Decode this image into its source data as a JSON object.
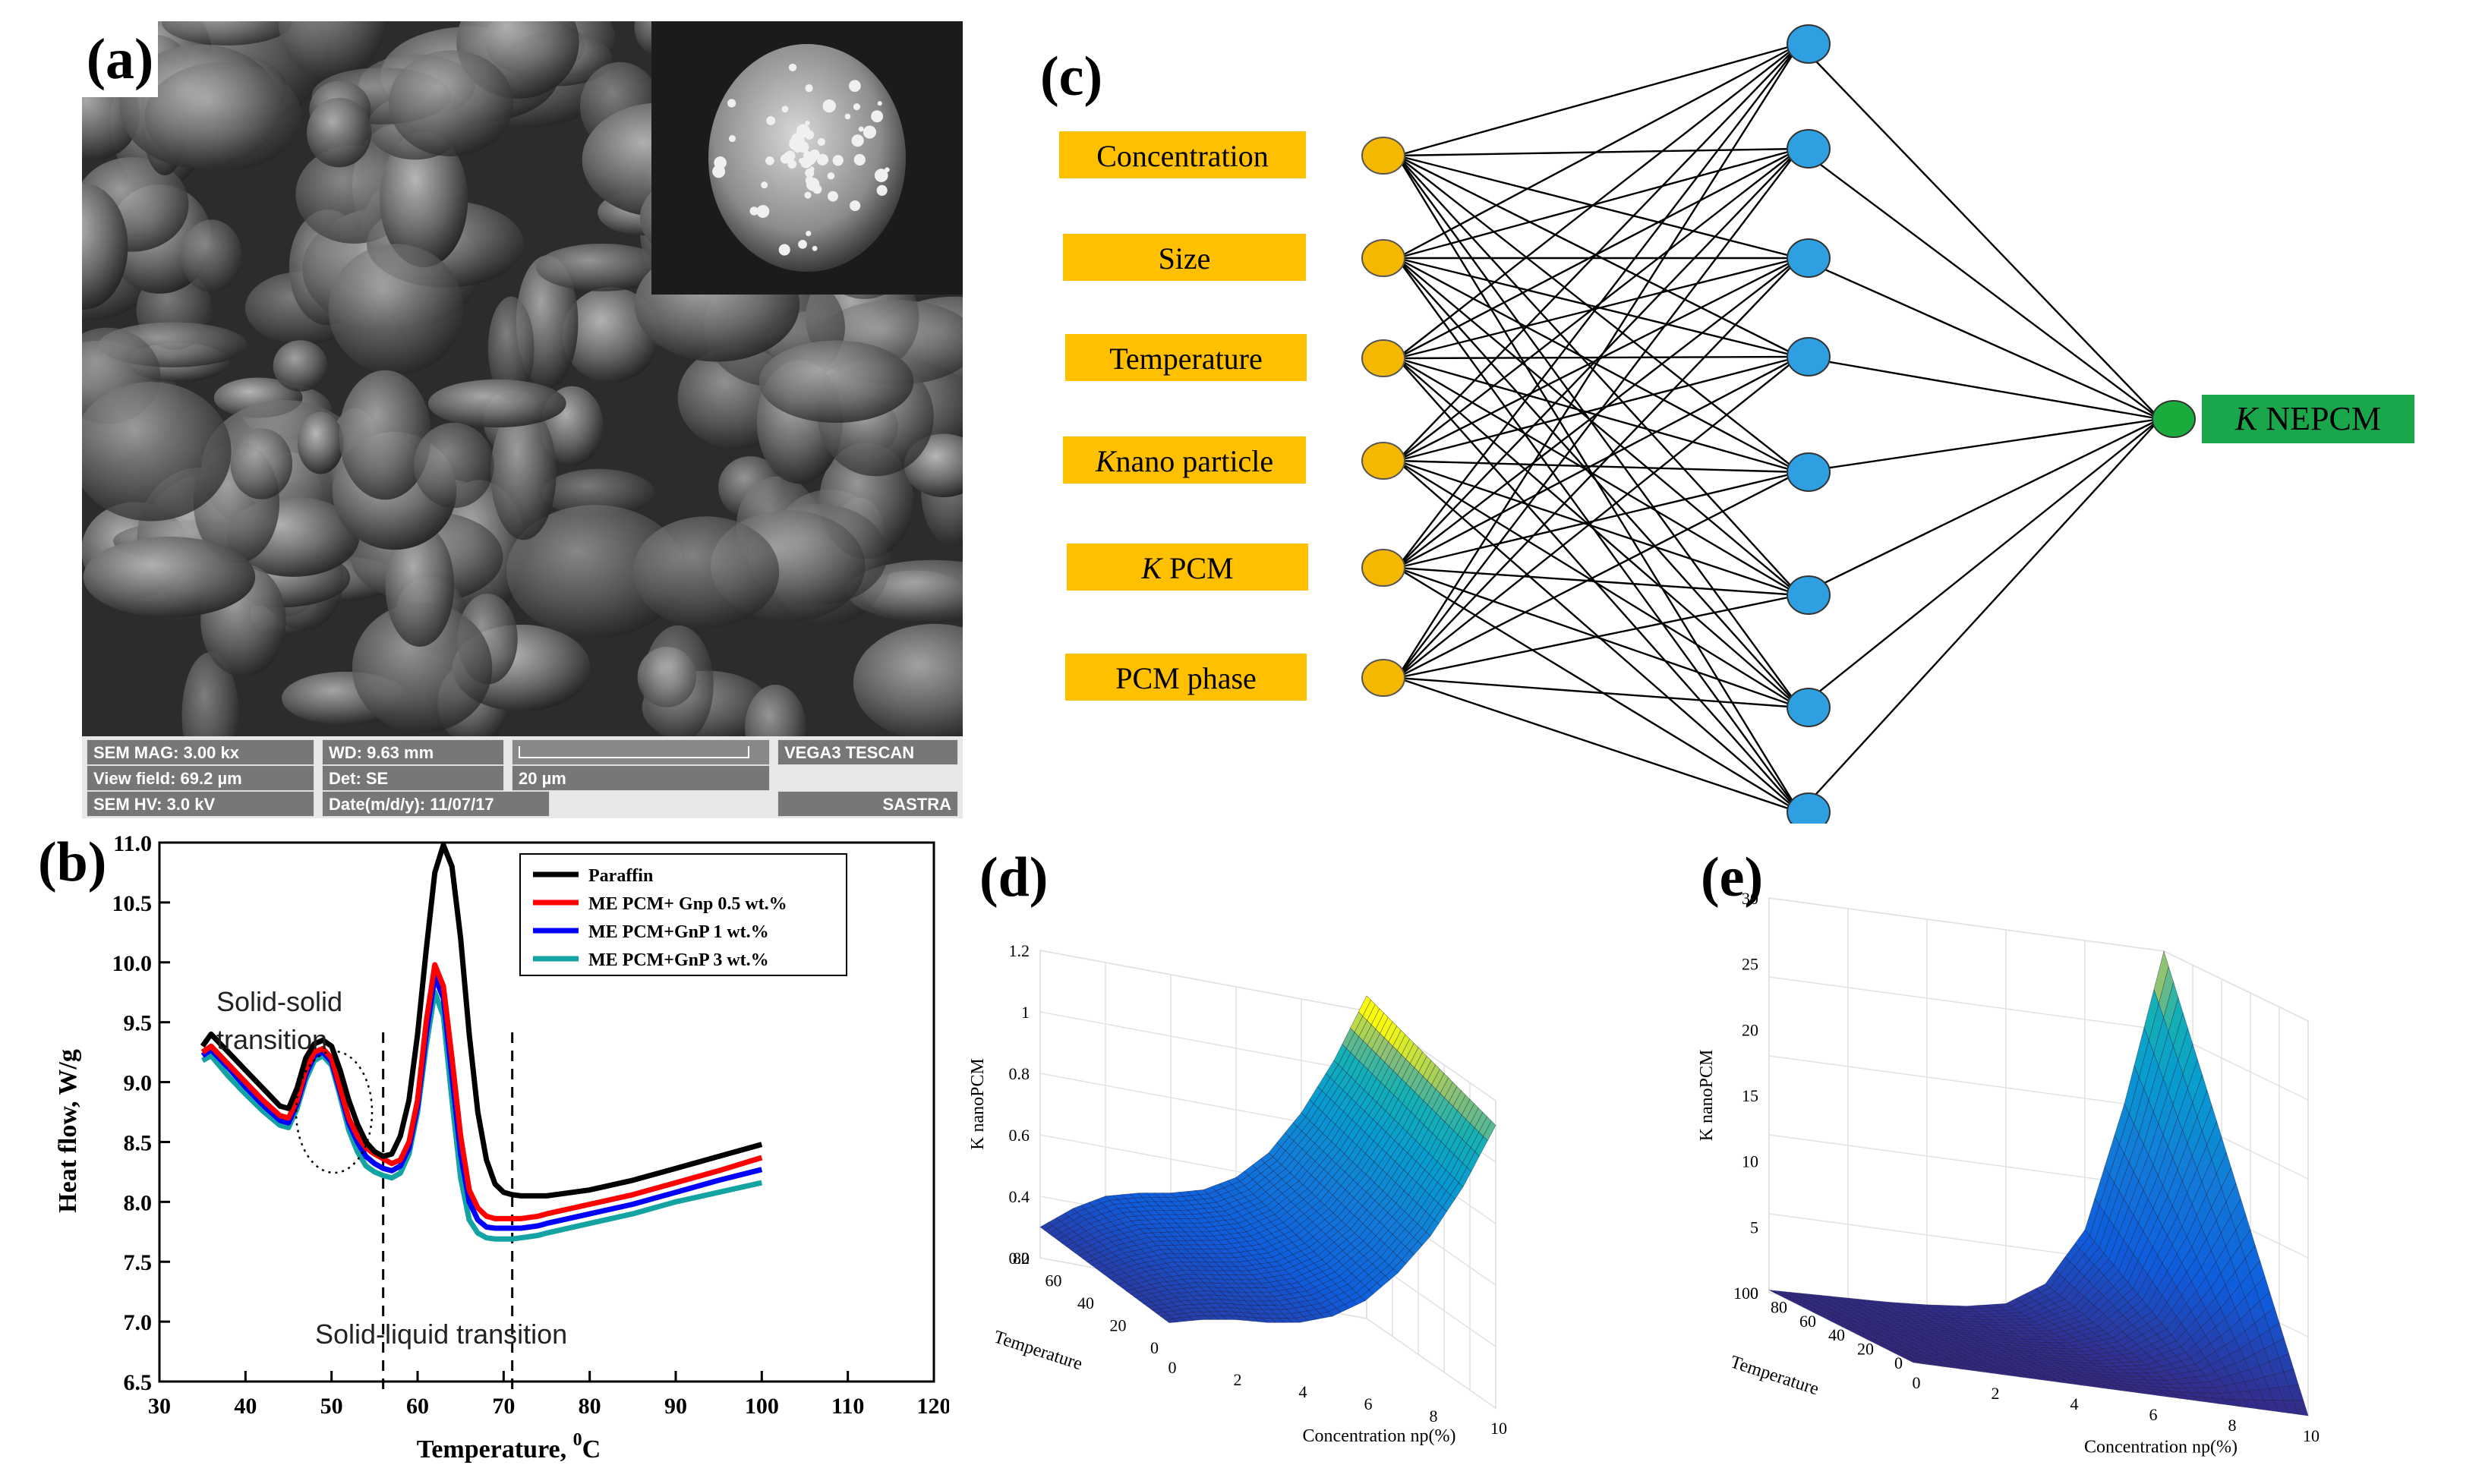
{
  "figure": {
    "labels": {
      "a": "(a)",
      "b": "(b)",
      "c": "(c)",
      "d": "(d)",
      "e": "(e)"
    }
  },
  "sem": {
    "mag": "SEM MAG: 3.00 kx",
    "wd": "WD: 9.63 mm",
    "view_field": "View field: 69.2 µm",
    "det": "Det: SE",
    "hv": "SEM HV: 3.0 kV",
    "date": "Date(m/d/y): 11/07/17",
    "scale": "20 µm",
    "brand": "VEGA3 TESCAN",
    "site": "SASTRA"
  },
  "network": {
    "inputs": [
      "Concentration",
      "Size",
      "Temperature",
      "nano particle",
      "PCM",
      "PCM phase"
    ],
    "k_symbol": "K",
    "output": "NEPCM",
    "hidden_count": 8,
    "colors": {
      "input_box": "#FFC000",
      "input_node": "#F5B800",
      "hidden_node": "#2E9FE0",
      "output_node": "#1BAA3C",
      "output_box": "#1AA64A"
    }
  },
  "chart_data": [
    {
      "id": "b",
      "type": "line",
      "xlabel": "Temperature, ",
      "xlabel_sup": "0",
      "xlabel_unit": "C",
      "ylabel": "Heat flow, W/g",
      "xlim": [
        30,
        120
      ],
      "ylim": [
        6.5,
        11.0
      ],
      "xticks": [
        30,
        40,
        50,
        60,
        70,
        80,
        90,
        100,
        110,
        120
      ],
      "yticks": [
        6.5,
        7.0,
        7.5,
        8.0,
        8.5,
        9.0,
        9.5,
        10.0,
        10.5,
        11.0
      ],
      "ytick_labels": [
        "6.5",
        "7.0",
        "7.5",
        "8.0",
        "8.5",
        "9.0",
        "9.5",
        "10.0",
        "10.5",
        "11.0"
      ],
      "annotations": [
        "Solid-solid",
        "transition",
        "Solid-liquid transition"
      ],
      "vlines": [
        56,
        71
      ],
      "series": [
        {
          "name": "Paraffin",
          "color": "#000000",
          "x": [
            35,
            36,
            38,
            40,
            42,
            44,
            45,
            46,
            47,
            48,
            49,
            50,
            51,
            52,
            53,
            54,
            55,
            56,
            57,
            58,
            59,
            60,
            61,
            62,
            63,
            64,
            65,
            66,
            67,
            68,
            69,
            70,
            71,
            72,
            73,
            74,
            75,
            80,
            85,
            90,
            95,
            100
          ],
          "y": [
            9.3,
            9.4,
            9.25,
            9.1,
            8.95,
            8.8,
            8.78,
            8.95,
            9.2,
            9.32,
            9.35,
            9.3,
            9.1,
            8.85,
            8.65,
            8.5,
            8.42,
            8.38,
            8.4,
            8.55,
            8.85,
            9.4,
            10.1,
            10.75,
            10.98,
            10.8,
            10.2,
            9.4,
            8.75,
            8.35,
            8.15,
            8.08,
            8.06,
            8.05,
            8.05,
            8.05,
            8.05,
            8.1,
            8.18,
            8.28,
            8.38,
            8.48
          ]
        },
        {
          "name": "ME PCM+ Gnp 0.5 wt.%",
          "color": "#ff0000",
          "x": [
            35,
            36,
            38,
            40,
            42,
            44,
            45,
            46,
            47,
            48,
            49,
            50,
            51,
            52,
            53,
            54,
            55,
            56,
            57,
            58,
            59,
            60,
            61,
            62,
            63,
            64,
            65,
            66,
            67,
            68,
            69,
            70,
            71,
            72,
            73,
            74,
            75,
            80,
            85,
            90,
            95,
            100
          ],
          "y": [
            9.25,
            9.3,
            9.15,
            9.0,
            8.85,
            8.72,
            8.7,
            8.85,
            9.1,
            9.25,
            9.28,
            9.2,
            8.95,
            8.7,
            8.55,
            8.45,
            8.4,
            8.36,
            8.32,
            8.35,
            8.5,
            8.85,
            9.5,
            9.98,
            9.8,
            9.2,
            8.55,
            8.1,
            7.95,
            7.88,
            7.86,
            7.86,
            7.86,
            7.86,
            7.87,
            7.88,
            7.9,
            7.98,
            8.06,
            8.16,
            8.26,
            8.37
          ]
        },
        {
          "name": "ME PCM+GnP 1 wt.%",
          "color": "#0000ff",
          "x": [
            35,
            36,
            38,
            40,
            42,
            44,
            45,
            46,
            47,
            48,
            49,
            50,
            51,
            52,
            53,
            54,
            55,
            56,
            57,
            58,
            59,
            60,
            61,
            62,
            63,
            64,
            65,
            66,
            67,
            68,
            69,
            70,
            71,
            72,
            73,
            74,
            75,
            80,
            85,
            90,
            95,
            100
          ],
          "y": [
            9.22,
            9.27,
            9.12,
            8.96,
            8.81,
            8.68,
            8.66,
            8.82,
            9.06,
            9.22,
            9.25,
            9.17,
            8.92,
            8.66,
            8.5,
            8.38,
            8.32,
            8.28,
            8.26,
            8.3,
            8.45,
            8.8,
            9.4,
            9.88,
            9.7,
            9.05,
            8.4,
            8.0,
            7.85,
            7.79,
            7.78,
            7.78,
            7.78,
            7.78,
            7.79,
            7.8,
            7.82,
            7.9,
            7.98,
            8.08,
            8.18,
            8.27
          ]
        },
        {
          "name": "ME PCM+GnP 3 wt.%",
          "color": "#14A3A3",
          "x": [
            35,
            36,
            38,
            40,
            42,
            44,
            45,
            46,
            47,
            48,
            49,
            50,
            51,
            52,
            53,
            54,
            55,
            56,
            57,
            58,
            59,
            60,
            61,
            62,
            63,
            64,
            65,
            66,
            67,
            68,
            69,
            70,
            71,
            72,
            73,
            74,
            75,
            80,
            85,
            90,
            95,
            100
          ],
          "y": [
            9.18,
            9.22,
            9.05,
            8.9,
            8.76,
            8.64,
            8.62,
            8.78,
            9.02,
            9.18,
            9.22,
            9.14,
            8.88,
            8.6,
            8.42,
            8.3,
            8.25,
            8.22,
            8.2,
            8.24,
            8.4,
            8.75,
            9.3,
            9.75,
            9.55,
            8.85,
            8.2,
            7.85,
            7.74,
            7.7,
            7.69,
            7.69,
            7.69,
            7.7,
            7.71,
            7.72,
            7.74,
            7.82,
            7.9,
            8.0,
            8.08,
            8.16
          ]
        }
      ]
    },
    {
      "id": "d",
      "type": "surface",
      "xlabel": "Concentration np(%)",
      "ylabel": "Temperature",
      "zlabel": "K nanoPCM",
      "xticks": [
        "0",
        "2",
        "4",
        "6",
        "8",
        "10"
      ],
      "yticks": [
        "0",
        "20",
        "40",
        "60",
        "80"
      ],
      "zticks": [
        "0.2",
        "0.4",
        "0.6",
        "0.8",
        "1",
        "1.2"
      ],
      "zlim": [
        0.2,
        1.2
      ],
      "x": [
        0,
        1,
        2,
        3,
        4,
        5,
        6,
        7,
        8,
        9,
        10
      ],
      "z_at_low_temp": [
        0.28,
        0.31,
        0.33,
        0.34,
        0.36,
        0.4,
        0.47,
        0.58,
        0.72,
        0.9,
        1.12
      ],
      "z_at_high_temp": [
        0.3,
        0.38,
        0.44,
        0.47,
        0.49,
        0.52,
        0.58,
        0.68,
        0.83,
        1.02,
        1.25
      ]
    },
    {
      "id": "e",
      "type": "surface",
      "xlabel": "Concentration np(%)",
      "ylabel": "Temperature",
      "zlabel": "K nanoPCM",
      "xticks": [
        "0",
        "2",
        "4",
        "6",
        "8",
        "10"
      ],
      "yticks": [
        "0",
        "20",
        "40",
        "60",
        "80",
        "100"
      ],
      "zticks": [
        "0",
        "5",
        "10",
        "15",
        "20",
        "25",
        "30"
      ],
      "zlim": [
        0,
        30
      ],
      "x": [
        0,
        1,
        2,
        3,
        4,
        5,
        6,
        7,
        8,
        9,
        10
      ],
      "z_at_low_temp": [
        0,
        0,
        0,
        0,
        0,
        0,
        0,
        0,
        0,
        0,
        0
      ],
      "z_at_high_temp": [
        0.2,
        0.3,
        0.4,
        0.5,
        0.7,
        1.0,
        1.6,
        3.5,
        8.0,
        18.0,
        30.0
      ]
    }
  ]
}
